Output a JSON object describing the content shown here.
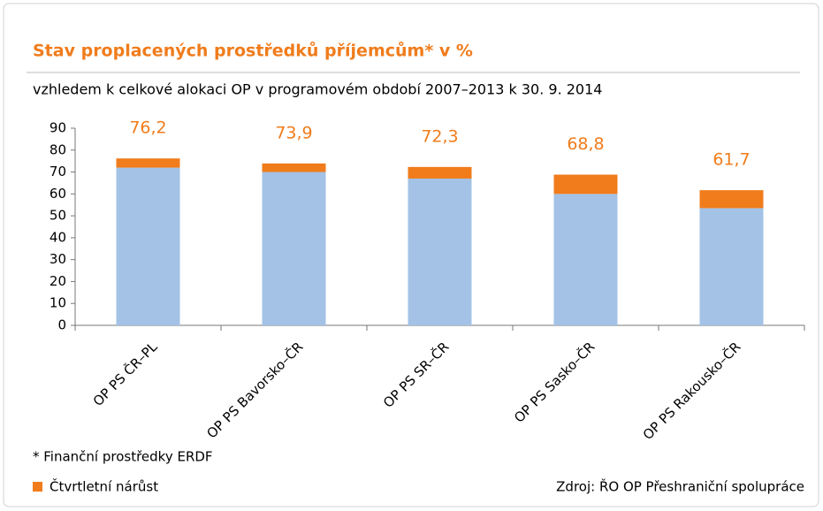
{
  "chart_data": {
    "type": "stacked-bar",
    "title": "Stav proplacených prostředků příjemcům* v %",
    "subtitle": "vzhledem k celkové alokaci OP v programovém období 2007–2013 k 30. 9. 2014",
    "categories": [
      "OP PS ČR–PL",
      "OP PS Bavorsko–ČR",
      "OP PS SR–ČR",
      "OP PS Sasko–ČR",
      "OP PS Rakousko–ČR"
    ],
    "series": [
      {
        "color": "#a3c2e6",
        "values": [
          72,
          70,
          67,
          60,
          53.5
        ]
      },
      {
        "name": "Čtvrtletní nárůst",
        "color": "#f07c1c",
        "values": [
          4.2,
          3.9,
          5.3,
          8.8,
          8.2
        ]
      }
    ],
    "totals": [
      76.2,
      73.9,
      72.3,
      68.8,
      61.7
    ],
    "value_labels": [
      "76,2",
      "73,9",
      "72,3",
      "68,8",
      "61,7"
    ],
    "ylim": [
      0,
      90
    ],
    "yticks": [
      0,
      10,
      20,
      30,
      40,
      50,
      60,
      70,
      80,
      90
    ],
    "note": "* Finanční prostředky ERDF",
    "source": "Zdroj: ŘO OP Přeshraniční spolupráce"
  }
}
